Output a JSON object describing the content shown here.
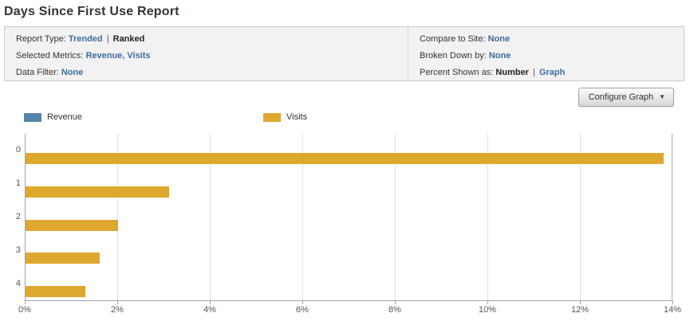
{
  "header": {
    "title": "Days Since First Use Report"
  },
  "summary": {
    "report_type": {
      "label": "Report Type:",
      "trended": "Trended",
      "separator": "|",
      "ranked": "Ranked"
    },
    "selected_metrics": {
      "label": "Selected Metrics:",
      "value": "Revenue, Visits"
    },
    "data_filter": {
      "label": "Data Filter:",
      "value": "None"
    },
    "compare_to_site": {
      "label": "Compare to Site:",
      "value": "None"
    },
    "broken_down_by": {
      "label": "Broken Down by:",
      "value": "None"
    },
    "percent_shown_as": {
      "label": "Percent Shown as:",
      "number": "Number",
      "separator": "|",
      "graph": "Graph"
    }
  },
  "toolbar": {
    "configure_graph_label": "Configure Graph",
    "caret": "▼"
  },
  "colors": {
    "link_blue": "#3a6e9f",
    "revenue_blue": "#5585a7",
    "visits_gold": "#dea82f",
    "axis_gray": "#a3a3a3",
    "gridline_gray": "#e2e2e2"
  },
  "chart_data": {
    "type": "bar",
    "orientation": "horizontal",
    "title": "",
    "xlabel": "",
    "ylabel": "",
    "categories": [
      "0",
      "1",
      "2",
      "3",
      "4"
    ],
    "series": [
      {
        "name": "Revenue",
        "color": "#5585a7",
        "values": []
      },
      {
        "name": "Visits",
        "color": "#dea82f",
        "values": [
          13.8,
          3.1,
          2.0,
          1.6,
          1.3
        ]
      }
    ],
    "xlim": [
      0,
      14
    ],
    "xticks": [
      "0%",
      "2%",
      "4%",
      "6%",
      "8%",
      "10%",
      "12%",
      "14%"
    ],
    "xtick_values": [
      0,
      2,
      4,
      6,
      8,
      10,
      12,
      14
    ],
    "grid": true,
    "legend_position": "top-left"
  }
}
